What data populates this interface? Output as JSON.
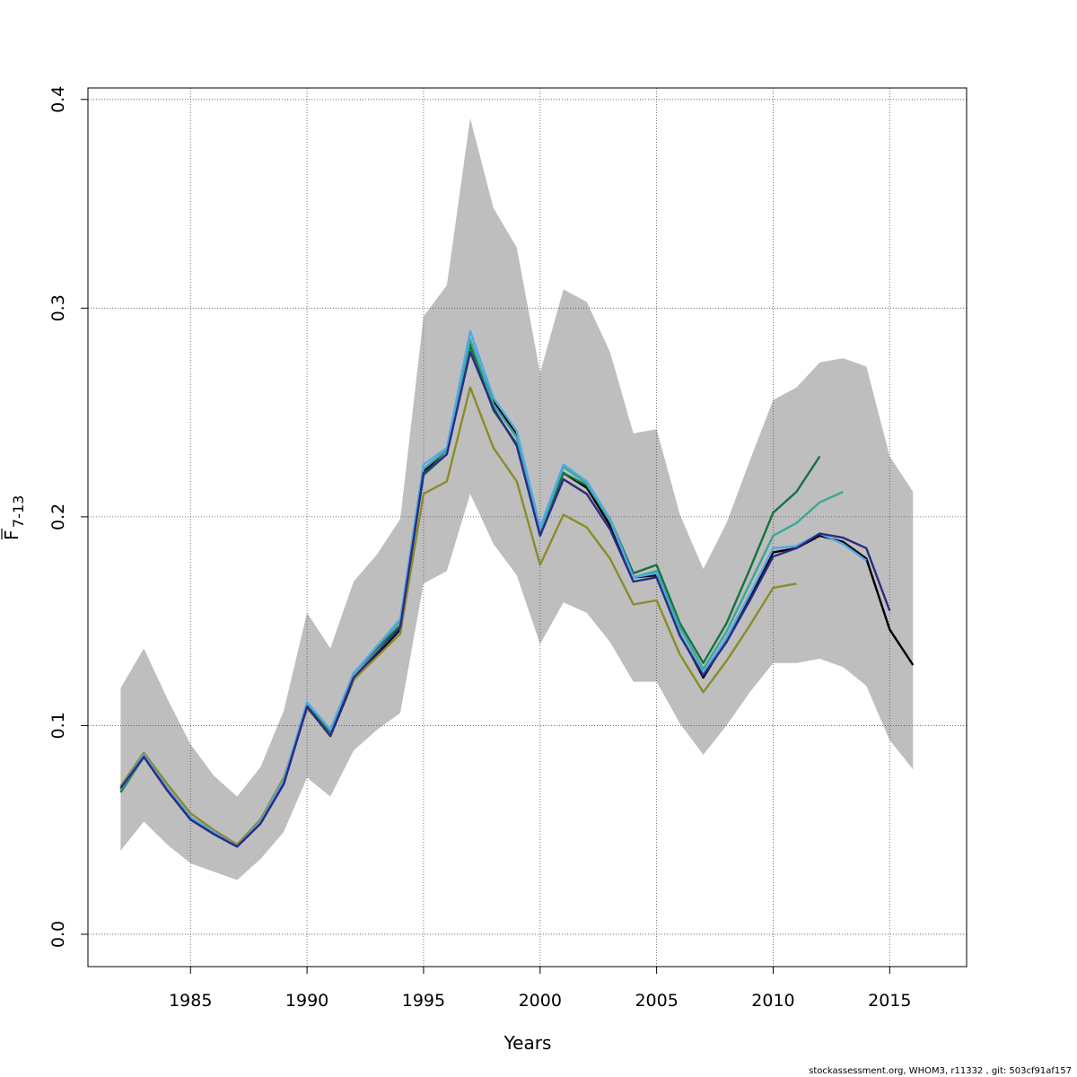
{
  "chart_data": {
    "type": "line",
    "xlabel": "Years",
    "ylabel": "F",
    "ylabel_subscript": "7-13",
    "xlim": [
      1980.6,
      2018.3
    ],
    "ylim": [
      -0.0155,
      0.4055
    ],
    "x_ticks": [
      1985,
      1990,
      1995,
      2000,
      2005,
      2010,
      2015
    ],
    "x_tick_labels": [
      "1985",
      "1990",
      "1995",
      "2000",
      "2005",
      "2010",
      "2015"
    ],
    "y_ticks": [
      0,
      0.1,
      0.2,
      0.3,
      0.4
    ],
    "y_tick_labels": [
      "0.0",
      "0.1",
      "0.2",
      "0.3",
      "0.4"
    ],
    "grid": true,
    "band": {
      "color": "#bebebe",
      "x": [
        1982,
        1983,
        1984,
        1985,
        1986,
        1987,
        1988,
        1989,
        1990,
        1991,
        1992,
        1993,
        1994,
        1995,
        1996,
        1997,
        1998,
        1999,
        2000,
        2001,
        2002,
        2003,
        2004,
        2005,
        2006,
        2007,
        2008,
        2009,
        2010,
        2011,
        2012,
        2013,
        2014,
        2015,
        2016
      ],
      "upper": [
        0.118,
        0.137,
        0.113,
        0.091,
        0.076,
        0.066,
        0.08,
        0.107,
        0.154,
        0.137,
        0.169,
        0.182,
        0.199,
        0.296,
        0.311,
        0.391,
        0.348,
        0.329,
        0.269,
        0.309,
        0.303,
        0.279,
        0.24,
        0.242,
        0.201,
        0.175,
        0.197,
        0.227,
        0.256,
        0.262,
        0.274,
        0.276,
        0.272,
        0.229,
        0.212
      ],
      "lower": [
        0.04,
        0.054,
        0.043,
        0.034,
        0.03,
        0.026,
        0.036,
        0.049,
        0.075,
        0.066,
        0.088,
        0.098,
        0.106,
        0.168,
        0.174,
        0.211,
        0.187,
        0.172,
        0.139,
        0.159,
        0.154,
        0.14,
        0.121,
        0.121,
        0.101,
        0.086,
        0.1,
        0.116,
        0.13,
        0.13,
        0.132,
        0.128,
        0.119,
        0.093,
        0.079
      ]
    },
    "series": [
      {
        "color": "#3f3f3f",
        "dash": "4,4",
        "x": [
          1982,
          1983,
          1984,
          1985,
          1986,
          1987,
          1988,
          1989,
          1990,
          1991,
          1992,
          1993,
          1994,
          1995,
          1996,
          1997,
          1998,
          1999,
          2000,
          2001,
          2002,
          2003,
          2004,
          2005,
          2006,
          2007,
          2008,
          2009,
          2010,
          2011,
          2012,
          2013,
          2014,
          2015,
          2016
        ],
        "values": [
          0.069,
          0.085,
          0.069,
          0.055,
          0.048,
          0.042,
          0.053,
          0.072,
          0.109,
          0.095,
          0.122,
          0.134,
          0.146,
          0.222,
          0.232,
          0.283,
          0.255,
          0.24,
          0.193,
          0.221,
          0.214,
          0.196,
          0.171,
          0.172,
          0.144,
          0.123,
          0.141,
          0.161,
          0.183,
          0.185,
          0.191,
          0.188,
          0.18,
          0.146,
          0.129
        ]
      },
      {
        "color": "#000000",
        "dash": "",
        "x": [
          1982,
          1983,
          1984,
          1985,
          1986,
          1987,
          1988,
          1989,
          1990,
          1991,
          1992,
          1993,
          1994,
          1995,
          1996,
          1997,
          1998,
          1999,
          2000,
          2001,
          2002,
          2003,
          2004,
          2005,
          2006,
          2007,
          2008,
          2009,
          2010,
          2011,
          2012,
          2013,
          2014,
          2015,
          2016
        ],
        "values": [
          0.069,
          0.085,
          0.069,
          0.055,
          0.048,
          0.042,
          0.053,
          0.072,
          0.109,
          0.095,
          0.122,
          0.134,
          0.146,
          0.222,
          0.232,
          0.283,
          0.255,
          0.24,
          0.193,
          0.221,
          0.214,
          0.196,
          0.171,
          0.172,
          0.144,
          0.123,
          0.141,
          0.161,
          0.183,
          0.185,
          0.191,
          0.188,
          0.18,
          0.146,
          0.129
        ]
      },
      {
        "color": "#8b8b2b",
        "dash": "",
        "x": [
          1982,
          1983,
          1984,
          1985,
          1986,
          1987,
          1988,
          1989,
          1990,
          1991,
          1992,
          1993,
          1994,
          1995,
          1996,
          1997,
          1998,
          1999,
          2000,
          2001,
          2002,
          2003,
          2004,
          2005,
          2006,
          2007,
          2008,
          2009,
          2010,
          2011
        ],
        "values": [
          0.071,
          0.087,
          0.072,
          0.058,
          0.05,
          0.043,
          0.055,
          0.075,
          0.108,
          0.097,
          0.122,
          0.133,
          0.144,
          0.211,
          0.217,
          0.262,
          0.233,
          0.217,
          0.177,
          0.201,
          0.195,
          0.18,
          0.158,
          0.16,
          0.134,
          0.116,
          0.131,
          0.148,
          0.166,
          0.168
        ]
      },
      {
        "color": "#167241",
        "dash": "",
        "x": [
          1982,
          1983,
          1984,
          1985,
          1986,
          1987,
          1988,
          1989,
          1990,
          1991,
          1992,
          1993,
          1994,
          1995,
          1996,
          1997,
          1998,
          1999,
          2000,
          2001,
          2002,
          2003,
          2004,
          2005,
          2006,
          2007,
          2008,
          2009,
          2010,
          2011,
          2012
        ],
        "values": [
          0.068,
          0.085,
          0.07,
          0.056,
          0.048,
          0.042,
          0.054,
          0.073,
          0.11,
          0.097,
          0.125,
          0.137,
          0.148,
          0.22,
          0.23,
          0.282,
          0.251,
          0.235,
          0.191,
          0.221,
          0.215,
          0.199,
          0.173,
          0.177,
          0.149,
          0.13,
          0.149,
          0.175,
          0.202,
          0.212,
          0.229
        ]
      },
      {
        "color": "#3aa896",
        "dash": "",
        "x": [
          1982,
          1983,
          1984,
          1985,
          1986,
          1987,
          1988,
          1989,
          1990,
          1991,
          1992,
          1993,
          1994,
          1995,
          1996,
          1997,
          1998,
          1999,
          2000,
          2001,
          2002,
          2003,
          2004,
          2005,
          2006,
          2007,
          2008,
          2009,
          2010,
          2011,
          2012,
          2013
        ],
        "values": [
          0.069,
          0.085,
          0.07,
          0.056,
          0.049,
          0.042,
          0.054,
          0.073,
          0.111,
          0.098,
          0.125,
          0.138,
          0.15,
          0.223,
          0.232,
          0.285,
          0.254,
          0.238,
          0.193,
          0.224,
          0.216,
          0.198,
          0.171,
          0.174,
          0.147,
          0.127,
          0.145,
          0.168,
          0.191,
          0.197,
          0.207,
          0.212
        ]
      },
      {
        "color": "#4fa9e6",
        "dash": "",
        "x": [
          1982,
          1983,
          1984,
          1985,
          1986,
          1987,
          1988,
          1989,
          1990,
          1991,
          1992,
          1993,
          1994,
          1995,
          1996,
          1997,
          1998,
          1999,
          2000,
          2001,
          2002,
          2003,
          2004,
          2005,
          2006,
          2007,
          2008,
          2009,
          2010,
          2011,
          2012,
          2013,
          2014
        ],
        "values": [
          0.07,
          0.086,
          0.07,
          0.056,
          0.049,
          0.042,
          0.054,
          0.074,
          0.111,
          0.098,
          0.125,
          0.138,
          0.151,
          0.225,
          0.233,
          0.289,
          0.257,
          0.241,
          0.195,
          0.225,
          0.217,
          0.199,
          0.171,
          0.173,
          0.144,
          0.125,
          0.142,
          0.163,
          0.185,
          0.186,
          0.192,
          0.187,
          0.179
        ]
      },
      {
        "color": "#2c2b85",
        "dash": "",
        "x": [
          1982,
          1983,
          1984,
          1985,
          1986,
          1987,
          1988,
          1989,
          1990,
          1991,
          1992,
          1993,
          1994,
          1995,
          1996,
          1997,
          1998,
          1999,
          2000,
          2001,
          2002,
          2003,
          2004,
          2005,
          2006,
          2007,
          2008,
          2009,
          2010,
          2011,
          2012,
          2013,
          2014,
          2015
        ],
        "values": [
          0.07,
          0.085,
          0.069,
          0.055,
          0.048,
          0.042,
          0.053,
          0.072,
          0.109,
          0.095,
          0.123,
          0.135,
          0.147,
          0.221,
          0.23,
          0.279,
          0.252,
          0.234,
          0.191,
          0.218,
          0.211,
          0.194,
          0.169,
          0.171,
          0.143,
          0.124,
          0.14,
          0.16,
          0.181,
          0.185,
          0.192,
          0.19,
          0.185,
          0.155
        ]
      }
    ]
  },
  "footer": "stockassessment.org, WHOM3, r11332 , git: 503cf91af157"
}
